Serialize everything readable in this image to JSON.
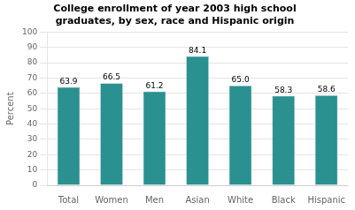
{
  "chart_data": {
    "type": "bar",
    "title": "College enrollment of year 2003 high school\ngraduates, by sex, race and Hispanic origin",
    "categories": [
      "Total",
      "Women",
      "Men",
      "Asian",
      "White",
      "Black",
      "Hispanic"
    ],
    "values": [
      63.9,
      66.5,
      61.2,
      84.1,
      65.0,
      58.3,
      58.6
    ],
    "value_labels": [
      "63.9",
      "66.5",
      "61.2",
      "84.1",
      "65.0",
      "58.3",
      "58.6"
    ],
    "color": "#2a9090",
    "ylabel": "Percent",
    "ylim": [
      0,
      100
    ],
    "yticks": [
      0,
      10,
      20,
      30,
      40,
      50,
      60,
      70,
      80,
      90,
      100
    ],
    "grid": true,
    "data_labels": true
  }
}
